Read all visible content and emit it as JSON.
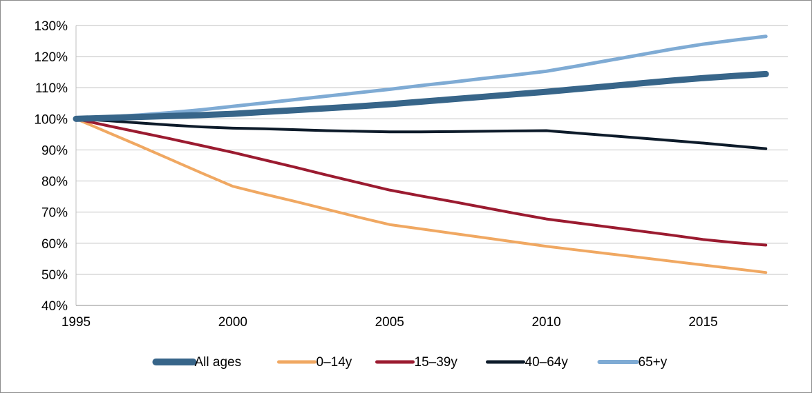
{
  "chart_data": {
    "type": "line",
    "title": "",
    "xlabel": "",
    "ylabel": "",
    "x": [
      1995,
      1996,
      1997,
      1998,
      1999,
      2000,
      2001,
      2002,
      2003,
      2004,
      2005,
      2006,
      2007,
      2008,
      2009,
      2010,
      2011,
      2012,
      2013,
      2014,
      2015,
      2016,
      2017
    ],
    "xlim": [
      1995,
      2017.7
    ],
    "ylim": [
      40,
      130
    ],
    "x_ticks": [
      1995,
      2000,
      2005,
      2010,
      2015
    ],
    "y_ticks": [
      40,
      50,
      60,
      70,
      80,
      90,
      100,
      110,
      120,
      130
    ],
    "y_tick_format": "percent",
    "grid": "horizontal",
    "legend_position": "bottom",
    "series": [
      {
        "name": "All ages",
        "color": "#376589",
        "values": [
          100,
          100.3,
          100.6,
          100.9,
          101.2,
          101.6,
          102.2,
          102.8,
          103.4,
          104.0,
          104.7,
          105.5,
          106.3,
          107.1,
          107.9,
          108.7,
          109.6,
          110.5,
          111.4,
          112.3,
          113.1,
          113.8,
          114.4
        ]
      },
      {
        "name": "0–14y",
        "color": "#F0A862",
        "values": [
          100,
          95.7,
          91.4,
          87.0,
          82.6,
          78.3,
          75.8,
          73.4,
          70.9,
          68.4,
          66.0,
          64.6,
          63.2,
          61.8,
          60.4,
          59.0,
          57.8,
          56.6,
          55.4,
          54.2,
          53.0,
          51.8,
          50.6
        ]
      },
      {
        "name": "15–39y",
        "color": "#9B1B30",
        "values": [
          100,
          97.8,
          95.7,
          93.6,
          91.4,
          89.2,
          86.8,
          84.4,
          81.9,
          79.5,
          77.1,
          75.2,
          73.4,
          71.5,
          69.6,
          67.8,
          66.5,
          65.2,
          63.9,
          62.6,
          61.2,
          60.2,
          59.4
        ]
      },
      {
        "name": "40–64y",
        "color": "#0D1B2A",
        "values": [
          100,
          99.4,
          98.7,
          98.0,
          97.4,
          97.0,
          96.8,
          96.5,
          96.2,
          96.0,
          95.8,
          95.8,
          95.9,
          96.0,
          96.1,
          96.2,
          95.4,
          94.6,
          93.8,
          93.0,
          92.2,
          91.3,
          90.4
        ]
      },
      {
        "name": "65+y",
        "color": "#7FABD4",
        "values": [
          100,
          100.6,
          101.2,
          102.0,
          102.9,
          104.0,
          105.1,
          106.2,
          107.3,
          108.4,
          109.5,
          110.7,
          111.8,
          113.0,
          114.1,
          115.3,
          117.0,
          118.8,
          120.6,
          122.4,
          124.0,
          125.3,
          126.5
        ]
      }
    ]
  }
}
